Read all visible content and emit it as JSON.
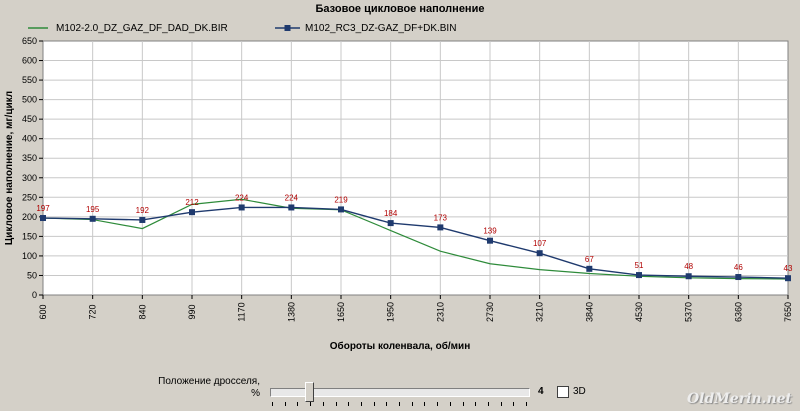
{
  "chart_data": {
    "type": "line",
    "title": "Базовое цикловое наполнение",
    "xlabel": "Обороты коленвала, об/мин",
    "ylabel": "Цикловое наполнение, мг/цикл",
    "categories": [
      "600",
      "720",
      "840",
      "990",
      "1170",
      "1380",
      "1650",
      "1950",
      "2310",
      "2730",
      "3210",
      "3840",
      "4530",
      "5370",
      "6360",
      "7650"
    ],
    "ylim": [
      0,
      650
    ],
    "yticks": [
      0,
      50,
      100,
      150,
      200,
      250,
      300,
      350,
      400,
      450,
      500,
      550,
      600,
      650
    ],
    "grid": true,
    "legend_position": "top",
    "series": [
      {
        "name": "M102-2.0_DZ_GAZ_DF_DAD_DK.BIR",
        "color": "#2e8b3a",
        "marker": "none",
        "values": [
          197,
          193,
          170,
          232,
          245,
          222,
          218,
          165,
          112,
          80,
          65,
          55,
          48,
          44,
          42,
          41
        ]
      },
      {
        "name": "M102_RC3_DZ-GAZ_DF+DK.BIN",
        "color": "#1f3a6e",
        "marker": "square",
        "values": [
          197,
          195,
          192,
          212,
          224,
          224,
          219,
          184,
          173,
          139,
          107,
          67,
          51,
          48,
          46,
          43
        ],
        "data_labels": [
          "197",
          "195",
          "192",
          "212",
          "224",
          "224",
          "219",
          "184",
          "173",
          "139",
          "107",
          "67",
          "51",
          "48",
          "46",
          "43"
        ]
      }
    ]
  },
  "controls": {
    "throttle_label_line1": "Положение дросселя,",
    "throttle_label_line2": "%",
    "throttle_value": "4",
    "throttle_fraction": 0.15,
    "checkbox_3d_label": "3D",
    "checkbox_3d_checked": false
  },
  "watermark": "OldMerin.net"
}
